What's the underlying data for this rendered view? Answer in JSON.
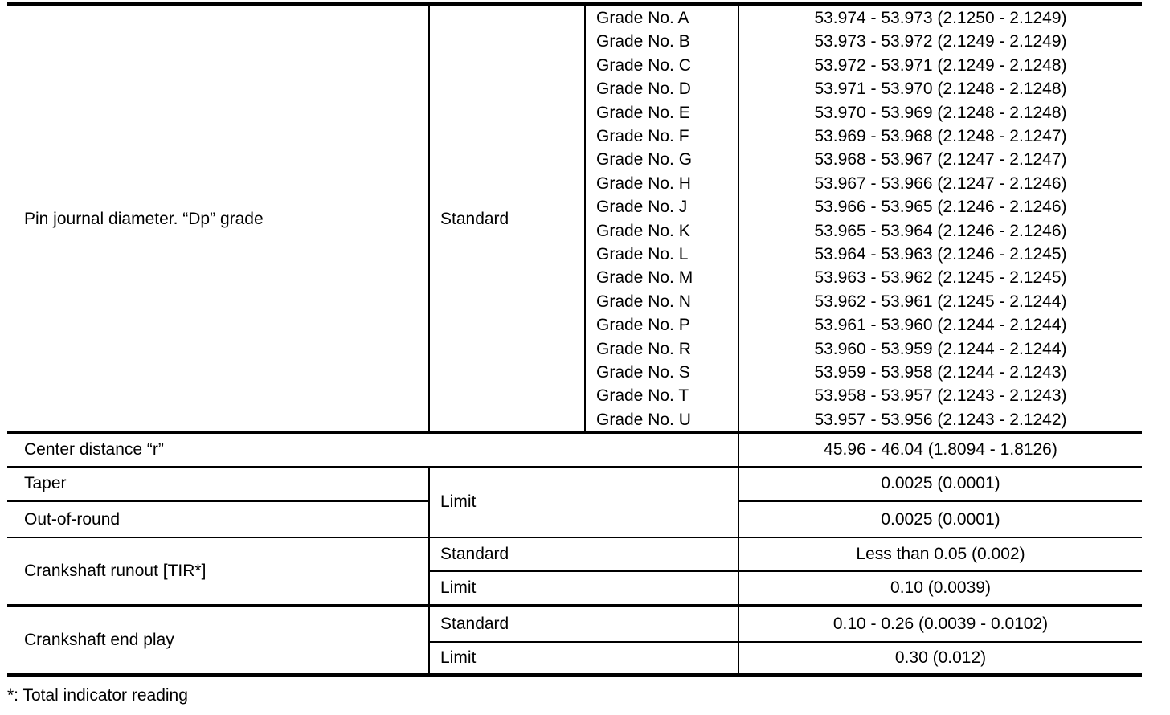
{
  "page": {
    "background_color": "#ffffff",
    "text_color": "#000000",
    "border_color": "#000000"
  },
  "table": {
    "pin_journal": {
      "label": "Pin journal diameter. “Dp” grade",
      "condition": "Standard",
      "grades": [
        {
          "name": "Grade No. A",
          "value": "53.974 - 53.973 (2.1250 - 2.1249)"
        },
        {
          "name": "Grade No. B",
          "value": "53.973 - 53.972 (2.1249 - 2.1249)"
        },
        {
          "name": "Grade No. C",
          "value": "53.972 - 53.971 (2.1249 - 2.1248)"
        },
        {
          "name": "Grade No. D",
          "value": "53.971 - 53.970 (2.1248 - 2.1248)"
        },
        {
          "name": "Grade No. E",
          "value": "53.970 - 53.969 (2.1248 - 2.1248)"
        },
        {
          "name": "Grade No. F",
          "value": "53.969 - 53.968 (2.1248 - 2.1247)"
        },
        {
          "name": "Grade No. G",
          "value": "53.968 - 53.967 (2.1247 - 2.1247)"
        },
        {
          "name": "Grade No. H",
          "value": "53.967 - 53.966 (2.1247 - 2.1246)"
        },
        {
          "name": "Grade No. J",
          "value": "53.966 - 53.965 (2.1246 - 2.1246)"
        },
        {
          "name": "Grade No. K",
          "value": "53.965 - 53.964 (2.1246 - 2.1246)"
        },
        {
          "name": "Grade No. L",
          "value": "53.964 - 53.963 (2.1246 - 2.1245)"
        },
        {
          "name": "Grade No. M",
          "value": "53.963 - 53.962 (2.1245 - 2.1245)"
        },
        {
          "name": "Grade No. N",
          "value": "53.962 - 53.961 (2.1245 - 2.1244)"
        },
        {
          "name": "Grade No. P",
          "value": "53.961 - 53.960 (2.1244 - 2.1244)"
        },
        {
          "name": "Grade No. R",
          "value": "53.960 - 53.959 (2.1244 - 2.1244)"
        },
        {
          "name": "Grade No. S",
          "value": "53.959 - 53.958 (2.1244 - 2.1243)"
        },
        {
          "name": "Grade No. T",
          "value": "53.958 - 53.957 (2.1243 - 2.1243)"
        },
        {
          "name": "Grade No. U",
          "value": "53.957 - 53.956 (2.1243 - 2.1242)"
        }
      ]
    },
    "center_distance": {
      "label": "Center distance “r”",
      "value": "45.96 - 46.04 (1.8094 - 1.8126)"
    },
    "taper": {
      "label": "Taper",
      "value": "0.0025 (0.0001)"
    },
    "out_of_round": {
      "label": "Out-of-round",
      "value": "0.0025 (0.0001)"
    },
    "taper_oor_condition": "Limit",
    "crankshaft_runout": {
      "label": "Crankshaft runout [TIR*]",
      "standard_label": "Standard",
      "standard_value": "Less than 0.05 (0.002)",
      "limit_label": "Limit",
      "limit_value": "0.10 (0.0039)"
    },
    "crankshaft_end_play": {
      "label": "Crankshaft end play",
      "standard_label": "Standard",
      "standard_value": "0.10 - 0.26 (0.0039 - 0.0102)",
      "limit_label": "Limit",
      "limit_value": "0.30 (0.012)"
    },
    "footnote": "*: Total indicator reading"
  }
}
